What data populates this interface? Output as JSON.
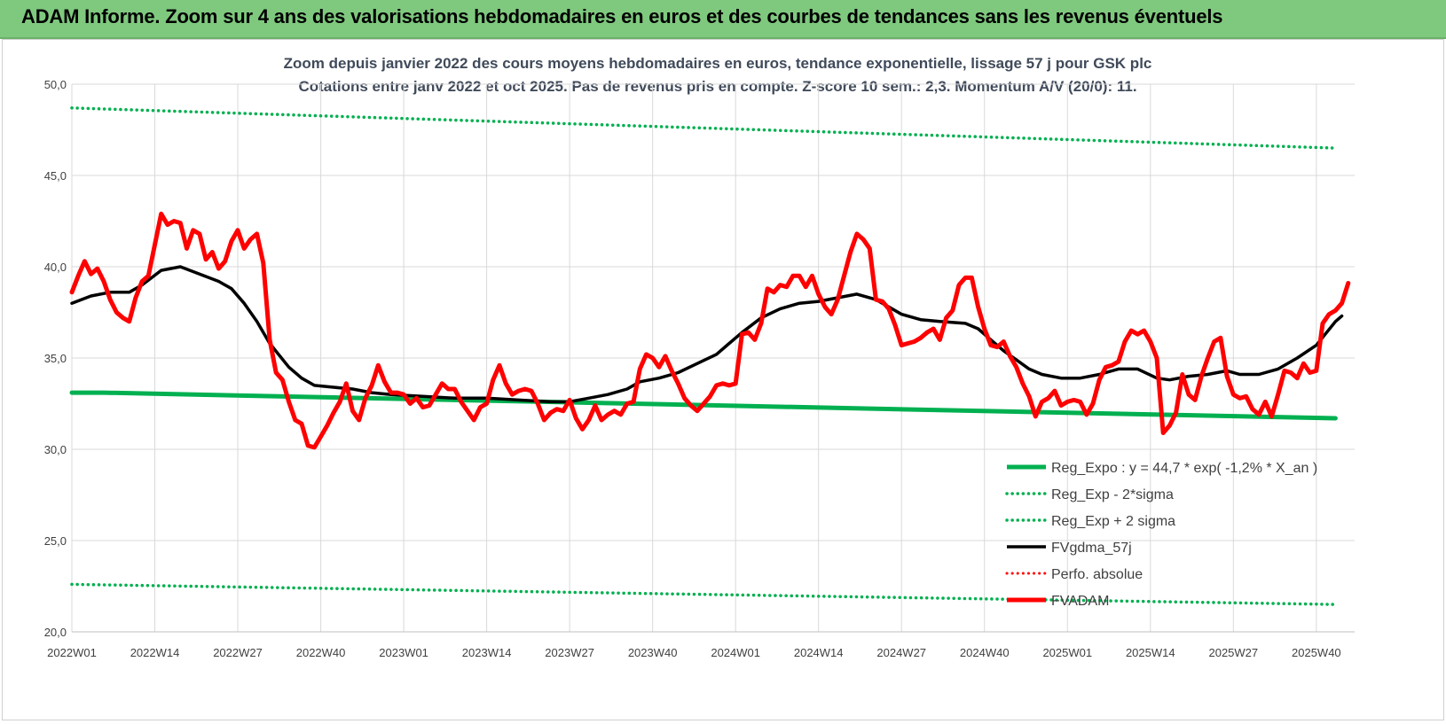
{
  "header": {
    "title": "ADAM Informe. Zoom sur 4 ans des valorisations hebdomadaires en euros et des courbes de tendances sans les revenus éventuels"
  },
  "chart_data": {
    "type": "line",
    "title_line1": "Zoom depuis janvier 2022 des cours moyens hebdomadaires en euros, tendance exponentielle, lissage 57 j pour GSK plc",
    "title_line2": "Cotations entre janv 2022 et oct 2025. Pas de revenus pris en compte. Z-score 10 sem.: 2,3. Momentum A/V (20/0): 11.",
    "ylim": [
      20,
      50
    ],
    "grid": true,
    "legend_position": "bottom-right",
    "y_ticks": [
      "20,0",
      "25,0",
      "30,0",
      "35,0",
      "40,0",
      "45,0",
      "50,0"
    ],
    "x_ticks": [
      {
        "label": "2022W01",
        "week": 0
      },
      {
        "label": "2022W14",
        "week": 13
      },
      {
        "label": "2022W27",
        "week": 26
      },
      {
        "label": "2022W40",
        "week": 39
      },
      {
        "label": "2023W01",
        "week": 52
      },
      {
        "label": "2023W14",
        "week": 65
      },
      {
        "label": "2023W27",
        "week": 78
      },
      {
        "label": "2023W40",
        "week": 91
      },
      {
        "label": "2024W01",
        "week": 104
      },
      {
        "label": "2024W14",
        "week": 117
      },
      {
        "label": "2024W27",
        "week": 130
      },
      {
        "label": "2024W40",
        "week": 143
      },
      {
        "label": "2025W01",
        "week": 156
      },
      {
        "label": "2025W14",
        "week": 169
      },
      {
        "label": "2025W27",
        "week": 182
      },
      {
        "label": "2025W40",
        "week": 195
      }
    ],
    "series": [
      {
        "name": "Reg_Expo : y = 44,7 * exp( -1,2% *  X_an )",
        "color": "#00b050",
        "style": "solid",
        "width": 5,
        "points": [
          [
            0,
            33.1
          ],
          [
            5,
            33.1
          ],
          [
            198,
            31.7
          ]
        ]
      },
      {
        "name": "Reg_Exp - 2*sigma",
        "color": "#00b050",
        "style": "dotted",
        "width": 3.5,
        "points": [
          [
            0,
            22.6
          ],
          [
            198,
            21.5
          ]
        ]
      },
      {
        "name": "Reg_Exp + 2 sigma",
        "color": "#00b050",
        "style": "dotted",
        "width": 3.5,
        "points": [
          [
            0,
            48.7
          ],
          [
            198,
            46.5
          ]
        ]
      },
      {
        "name": "FVgdma_57j",
        "color": "#000000",
        "style": "solid",
        "width": 3.5,
        "points": [
          [
            0,
            38.0
          ],
          [
            3,
            38.4
          ],
          [
            6,
            38.6
          ],
          [
            9,
            38.6
          ],
          [
            11,
            39.0
          ],
          [
            14,
            39.8
          ],
          [
            17,
            40.0
          ],
          [
            20,
            39.6
          ],
          [
            23,
            39.2
          ],
          [
            25,
            38.8
          ],
          [
            27,
            38.0
          ],
          [
            29,
            37.0
          ],
          [
            31,
            35.8
          ],
          [
            34,
            34.5
          ],
          [
            36,
            33.9
          ],
          [
            38,
            33.5
          ],
          [
            41,
            33.4
          ],
          [
            44,
            33.3
          ],
          [
            47,
            33.1
          ],
          [
            50,
            33.0
          ],
          [
            55,
            32.9
          ],
          [
            60,
            32.8
          ],
          [
            65,
            32.8
          ],
          [
            70,
            32.7
          ],
          [
            75,
            32.6
          ],
          [
            78,
            32.6
          ],
          [
            81,
            32.8
          ],
          [
            84,
            33.0
          ],
          [
            87,
            33.3
          ],
          [
            89,
            33.7
          ],
          [
            92,
            33.9
          ],
          [
            95,
            34.2
          ],
          [
            98,
            34.7
          ],
          [
            101,
            35.2
          ],
          [
            103,
            35.8
          ],
          [
            105,
            36.4
          ],
          [
            108,
            37.2
          ],
          [
            111,
            37.7
          ],
          [
            114,
            38.0
          ],
          [
            117,
            38.1
          ],
          [
            120,
            38.3
          ],
          [
            123,
            38.5
          ],
          [
            126,
            38.2
          ],
          [
            128,
            37.8
          ],
          [
            130,
            37.4
          ],
          [
            133,
            37.1
          ],
          [
            136,
            37.0
          ],
          [
            140,
            36.9
          ],
          [
            142,
            36.6
          ],
          [
            144,
            36.0
          ],
          [
            146,
            35.4
          ],
          [
            148,
            34.9
          ],
          [
            150,
            34.4
          ],
          [
            152,
            34.1
          ],
          [
            155,
            33.9
          ],
          [
            158,
            33.9
          ],
          [
            161,
            34.1
          ],
          [
            164,
            34.4
          ],
          [
            167,
            34.4
          ],
          [
            170,
            33.9
          ],
          [
            172,
            33.8
          ],
          [
            175,
            34.0
          ],
          [
            178,
            34.1
          ],
          [
            181,
            34.3
          ],
          [
            183,
            34.1
          ],
          [
            186,
            34.1
          ],
          [
            189,
            34.4
          ],
          [
            192,
            35.0
          ],
          [
            195,
            35.7
          ],
          [
            198,
            37.0
          ],
          [
            199,
            37.3
          ]
        ]
      },
      {
        "name": "Perfo. absolue",
        "color": "#ff0000",
        "style": "dotted",
        "width": 3,
        "points": []
      },
      {
        "name": "FVADAM",
        "color": "#ff0000",
        "style": "solid",
        "width": 5,
        "points": [
          [
            0,
            38.6
          ],
          [
            1,
            39.5
          ],
          [
            2,
            40.3
          ],
          [
            3,
            39.6
          ],
          [
            4,
            39.9
          ],
          [
            5,
            39.2
          ],
          [
            6,
            38.2
          ],
          [
            7,
            37.5
          ],
          [
            8,
            37.2
          ],
          [
            9,
            37.0
          ],
          [
            10,
            38.3
          ],
          [
            11,
            39.2
          ],
          [
            12,
            39.5
          ],
          [
            13,
            41.2
          ],
          [
            14,
            42.9
          ],
          [
            15,
            42.3
          ],
          [
            16,
            42.5
          ],
          [
            17,
            42.4
          ],
          [
            18,
            41.0
          ],
          [
            19,
            42.0
          ],
          [
            20,
            41.8
          ],
          [
            21,
            40.4
          ],
          [
            22,
            40.8
          ],
          [
            23,
            39.9
          ],
          [
            24,
            40.3
          ],
          [
            25,
            41.4
          ],
          [
            26,
            42.0
          ],
          [
            27,
            41.0
          ],
          [
            28,
            41.5
          ],
          [
            29,
            41.8
          ],
          [
            30,
            40.2
          ],
          [
            31,
            36.0
          ],
          [
            32,
            34.2
          ],
          [
            33,
            33.8
          ],
          [
            34,
            32.6
          ],
          [
            35,
            31.6
          ],
          [
            36,
            31.4
          ],
          [
            37,
            30.2
          ],
          [
            38,
            30.1
          ],
          [
            39,
            30.7
          ],
          [
            40,
            31.3
          ],
          [
            41,
            32.0
          ],
          [
            42,
            32.6
          ],
          [
            43,
            33.6
          ],
          [
            44,
            32.1
          ],
          [
            45,
            31.6
          ],
          [
            46,
            32.8
          ],
          [
            47,
            33.5
          ],
          [
            48,
            34.6
          ],
          [
            49,
            33.7
          ],
          [
            50,
            33.1
          ],
          [
            51,
            33.1
          ],
          [
            52,
            33.0
          ],
          [
            53,
            32.5
          ],
          [
            54,
            32.8
          ],
          [
            55,
            32.3
          ],
          [
            56,
            32.4
          ],
          [
            57,
            33.0
          ],
          [
            58,
            33.6
          ],
          [
            59,
            33.3
          ],
          [
            60,
            33.3
          ],
          [
            61,
            32.6
          ],
          [
            62,
            32.1
          ],
          [
            63,
            31.6
          ],
          [
            64,
            32.3
          ],
          [
            65,
            32.5
          ],
          [
            66,
            33.8
          ],
          [
            67,
            34.6
          ],
          [
            68,
            33.6
          ],
          [
            69,
            33.0
          ],
          [
            70,
            33.2
          ],
          [
            71,
            33.3
          ],
          [
            72,
            33.2
          ],
          [
            73,
            32.5
          ],
          [
            74,
            31.6
          ],
          [
            75,
            32.0
          ],
          [
            76,
            32.2
          ],
          [
            77,
            32.1
          ],
          [
            78,
            32.7
          ],
          [
            79,
            31.7
          ],
          [
            80,
            31.1
          ],
          [
            81,
            31.6
          ],
          [
            82,
            32.4
          ],
          [
            83,
            31.6
          ],
          [
            84,
            31.9
          ],
          [
            85,
            32.1
          ],
          [
            86,
            31.9
          ],
          [
            87,
            32.5
          ],
          [
            88,
            32.6
          ],
          [
            89,
            34.4
          ],
          [
            90,
            35.2
          ],
          [
            91,
            35.0
          ],
          [
            92,
            34.5
          ],
          [
            93,
            35.1
          ],
          [
            94,
            34.3
          ],
          [
            95,
            33.6
          ],
          [
            96,
            32.8
          ],
          [
            97,
            32.4
          ],
          [
            98,
            32.1
          ],
          [
            99,
            32.5
          ],
          [
            100,
            32.9
          ],
          [
            101,
            33.5
          ],
          [
            102,
            33.6
          ],
          [
            103,
            33.5
          ],
          [
            104,
            33.6
          ],
          [
            105,
            36.3
          ],
          [
            106,
            36.4
          ],
          [
            107,
            36.0
          ],
          [
            108,
            36.9
          ],
          [
            109,
            38.8
          ],
          [
            110,
            38.6
          ],
          [
            111,
            39.0
          ],
          [
            112,
            38.9
          ],
          [
            113,
            39.5
          ],
          [
            114,
            39.5
          ],
          [
            115,
            38.9
          ],
          [
            116,
            39.5
          ],
          [
            117,
            38.5
          ],
          [
            118,
            37.8
          ],
          [
            119,
            37.4
          ],
          [
            120,
            38.2
          ],
          [
            121,
            39.5
          ],
          [
            122,
            40.8
          ],
          [
            123,
            41.8
          ],
          [
            124,
            41.5
          ],
          [
            125,
            41.0
          ],
          [
            126,
            38.2
          ],
          [
            127,
            38.1
          ],
          [
            128,
            37.7
          ],
          [
            129,
            36.8
          ],
          [
            130,
            35.7
          ],
          [
            131,
            35.8
          ],
          [
            132,
            35.9
          ],
          [
            133,
            36.1
          ],
          [
            134,
            36.4
          ],
          [
            135,
            36.6
          ],
          [
            136,
            36.0
          ],
          [
            137,
            37.2
          ],
          [
            138,
            37.6
          ],
          [
            139,
            39.0
          ],
          [
            140,
            39.4
          ],
          [
            141,
            39.4
          ],
          [
            142,
            37.8
          ],
          [
            143,
            36.6
          ],
          [
            144,
            35.7
          ],
          [
            145,
            35.6
          ],
          [
            146,
            35.9
          ],
          [
            147,
            35.1
          ],
          [
            148,
            34.5
          ],
          [
            149,
            33.6
          ],
          [
            150,
            32.9
          ],
          [
            151,
            31.8
          ],
          [
            152,
            32.6
          ],
          [
            153,
            32.8
          ],
          [
            154,
            33.2
          ],
          [
            155,
            32.4
          ],
          [
            156,
            32.6
          ],
          [
            157,
            32.7
          ],
          [
            158,
            32.6
          ],
          [
            159,
            31.9
          ],
          [
            160,
            32.5
          ],
          [
            161,
            33.8
          ],
          [
            162,
            34.5
          ],
          [
            163,
            34.6
          ],
          [
            164,
            34.8
          ],
          [
            165,
            35.9
          ],
          [
            166,
            36.5
          ],
          [
            167,
            36.3
          ],
          [
            168,
            36.5
          ],
          [
            169,
            35.9
          ],
          [
            170,
            35.0
          ],
          [
            171,
            30.9
          ],
          [
            172,
            31.3
          ],
          [
            173,
            32.0
          ],
          [
            174,
            34.1
          ],
          [
            175,
            33.0
          ],
          [
            176,
            32.7
          ],
          [
            177,
            34.0
          ],
          [
            178,
            35.0
          ],
          [
            179,
            35.9
          ],
          [
            180,
            36.1
          ],
          [
            181,
            34.0
          ],
          [
            182,
            33.0
          ],
          [
            183,
            32.8
          ],
          [
            184,
            32.9
          ],
          [
            185,
            32.2
          ],
          [
            186,
            31.9
          ],
          [
            187,
            32.6
          ],
          [
            188,
            31.8
          ],
          [
            189,
            33.0
          ],
          [
            190,
            34.3
          ],
          [
            191,
            34.2
          ],
          [
            192,
            33.9
          ],
          [
            193,
            34.7
          ],
          [
            194,
            34.2
          ],
          [
            195,
            34.3
          ],
          [
            196,
            36.9
          ],
          [
            197,
            37.4
          ],
          [
            198,
            37.6
          ],
          [
            199,
            38.0
          ],
          [
            200,
            39.1
          ]
        ]
      }
    ]
  }
}
